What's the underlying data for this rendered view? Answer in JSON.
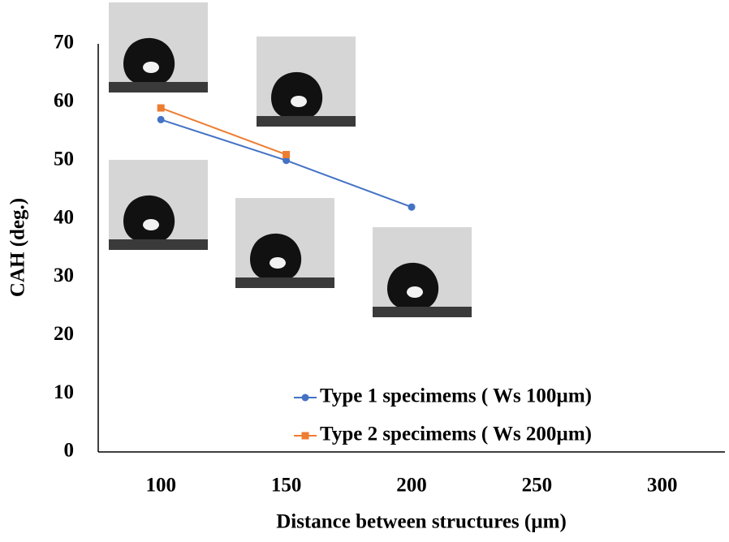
{
  "chart_data": {
    "type": "line",
    "x_label": "Distance between structures (µm)",
    "y_label": "CAH (deg.)",
    "categories": [
      "100",
      "150",
      "200",
      "250",
      "300"
    ],
    "series": [
      {
        "name": "Type 1 specimems ( Ws 100µm)",
        "color": "#4472c4",
        "marker": "circle",
        "values": [
          57,
          50,
          42,
          null,
          null
        ]
      },
      {
        "name": "Type 2 specimems ( Ws 200µm)",
        "color": "#ed7d31",
        "marker": "square",
        "values": [
          59,
          51,
          null,
          null,
          null
        ]
      }
    ],
    "ylim": [
      0,
      70
    ],
    "yticks": [
      0,
      10,
      20,
      30,
      40,
      50,
      60,
      70
    ],
    "grid": false,
    "legend": "lower right"
  }
}
